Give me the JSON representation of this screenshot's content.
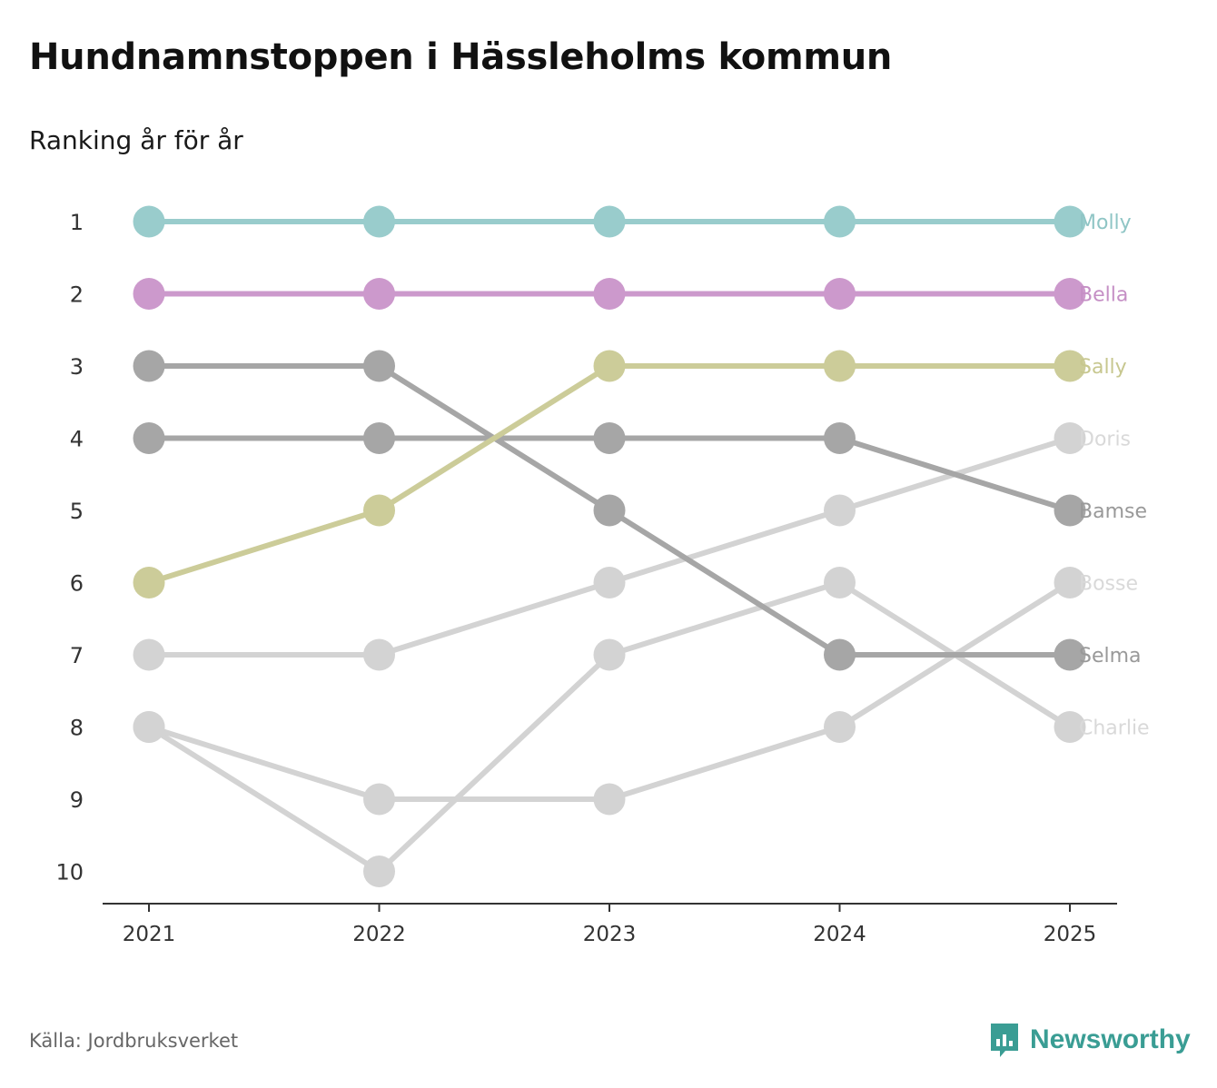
{
  "title": "Hundnamnstoppen i Hässleholms kommun",
  "subtitle": "Ranking år för år",
  "source": "Källa: Jordbruksverket",
  "brand": {
    "name": "Newsworthy",
    "icon": "bar-chart-speech-bubble-icon",
    "color": "#3a9d94"
  },
  "chart_data": {
    "type": "line",
    "x": [
      "2021",
      "2022",
      "2023",
      "2024",
      "2025"
    ],
    "yticks": [
      "1",
      "2",
      "3",
      "4",
      "5",
      "6",
      "7",
      "8",
      "9",
      "10"
    ],
    "ylim": [
      1,
      10
    ],
    "y_inverted": true,
    "grid": false,
    "series": [
      {
        "name": "Charlie",
        "color": "#d3d3d3",
        "values": [
          8,
          10,
          7,
          6,
          8
        ],
        "labelColor": "#d9d9d9"
      },
      {
        "name": "Bosse",
        "color": "#d3d3d3",
        "values": [
          8,
          9,
          9,
          8,
          6
        ],
        "labelColor": "#d9d9d9"
      },
      {
        "name": "Doris",
        "color": "#d3d3d3",
        "values": [
          7,
          7,
          6,
          5,
          4
        ],
        "labelColor": "#d9d9d9"
      },
      {
        "name": "Selma",
        "color": "#a6a6a6",
        "values": [
          3,
          3,
          5,
          7,
          7
        ],
        "labelColor": "#999999"
      },
      {
        "name": "Bamse",
        "color": "#a6a6a6",
        "values": [
          4,
          4,
          4,
          4,
          5
        ],
        "labelColor": "#999999"
      },
      {
        "name": "Sally",
        "color": "#cccc99",
        "values": [
          6,
          5,
          3,
          3,
          3
        ],
        "labelColor": "#c7c78f"
      },
      {
        "name": "Bella",
        "color": "#cc99cc",
        "values": [
          2,
          2,
          2,
          2,
          2
        ],
        "labelColor": "#c58fc5"
      },
      {
        "name": "Molly",
        "color": "#99cccc",
        "values": [
          1,
          1,
          1,
          1,
          1
        ],
        "labelColor": "#8fc5c5"
      }
    ]
  }
}
